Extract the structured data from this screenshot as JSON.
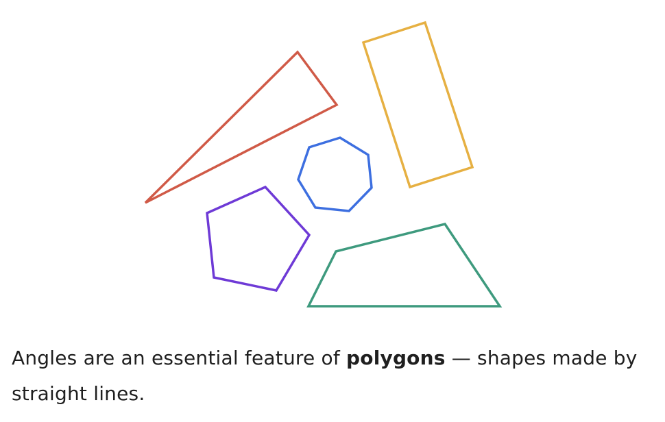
{
  "figure": {
    "shapes": [
      {
        "name": "triangle",
        "color": "#d05a47"
      },
      {
        "name": "rectangle",
        "color": "#e6b042"
      },
      {
        "name": "heptagon",
        "color": "#3d6fe0"
      },
      {
        "name": "pentagon",
        "color": "#6e3ad6"
      },
      {
        "name": "trapezoid",
        "color": "#3e9a7e"
      }
    ]
  },
  "caption": {
    "before": "Angles are an essential feature of ",
    "bold": "polygons",
    "after": " — shapes made by straight lines."
  }
}
